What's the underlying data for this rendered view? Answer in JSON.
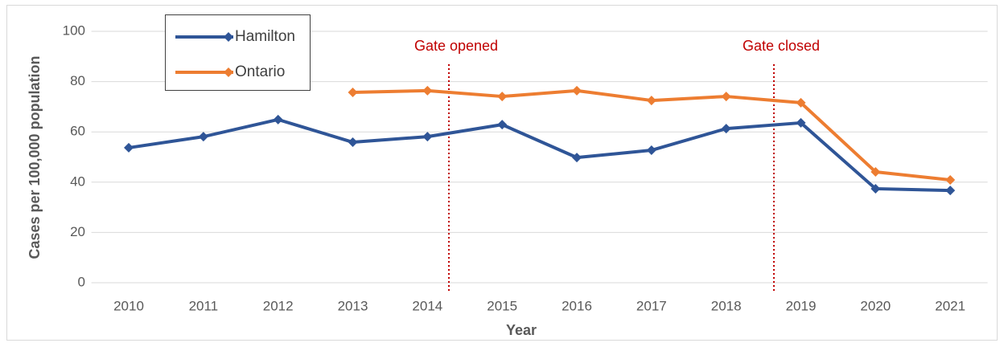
{
  "chart_data": {
    "type": "line",
    "x_label": "Year",
    "y_label": "Cases per 100,000 population",
    "categories": [
      "2010",
      "2011",
      "2012",
      "2013",
      "2014",
      "2015",
      "2016",
      "2017",
      "2018",
      "2019",
      "2020",
      "2021"
    ],
    "series": [
      {
        "name": "Hamilton",
        "color": "#2f5597",
        "values": [
          53.7,
          58.1,
          64.9,
          55.9,
          58.1,
          62.9,
          49.8,
          52.7,
          61.3,
          63.6,
          37.4,
          36.7
        ]
      },
      {
        "name": "Ontario",
        "color": "#ed7d31",
        "values": [
          null,
          null,
          null,
          75.7,
          76.4,
          74.1,
          76.4,
          72.5,
          74.1,
          71.6,
          44.1,
          40.9
        ]
      }
    ],
    "ylim": [
      0,
      100
    ],
    "yticks": [
      0,
      20,
      40,
      60,
      80,
      100
    ],
    "grid": true,
    "legend": "upper left",
    "annotations": [
      {
        "text": "Gate opened",
        "color": "#c00000"
      },
      {
        "text": "Gate closed",
        "color": "#c00000"
      }
    ]
  }
}
